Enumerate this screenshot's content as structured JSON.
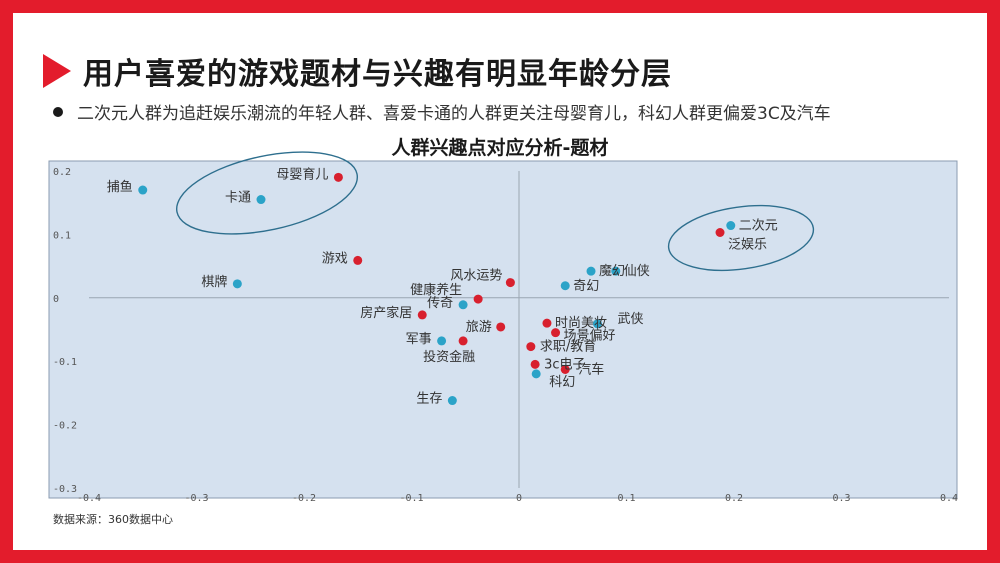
{
  "page": {
    "title": "用户喜爱的游戏题材与兴趣有明显年龄分层",
    "bullet": "二次元人群为追赶娱乐潮流的年轻人群、喜爱卡通的人群更关注母婴育儿，科幻人群更偏爱3C及汽车",
    "source": "数据来源：360数据中心",
    "accent_color": "#e31c2c",
    "bullet_icon": "bullet-dot-icon",
    "title_icon": "triangle-right-icon"
  },
  "chart_data": {
    "type": "scatter",
    "title": "人群兴趣点对应分析-题材",
    "xlim": [
      -0.4,
      0.4
    ],
    "ylim": [
      -0.3,
      0.2
    ],
    "xticks": [
      -0.4,
      -0.3,
      -0.2,
      -0.1,
      0,
      0.1,
      0.2,
      0.3,
      0.4
    ],
    "yticks": [
      -0.3,
      -0.2,
      -0.1,
      0,
      0.1,
      0.2
    ],
    "xtick_labels": [
      "-0.4",
      "-0.3",
      "-0.2",
      "-0.1",
      "0",
      "0.1",
      "0.2",
      "0.3",
      "0.4"
    ],
    "ytick_labels": [
      "-0.3",
      "-0.2",
      "-0.1",
      "0",
      "0.1",
      "0.2"
    ],
    "grid": false,
    "plot_bg": "#d5e1ef",
    "series_colors": {
      "blue": "#2ba3c8",
      "red": "#d8202e"
    },
    "series": [
      {
        "color_key": "blue",
        "points": [
          {
            "label": "捕鱼",
            "x": -0.35,
            "y": 0.17
          },
          {
            "label": "卡通",
            "x": -0.24,
            "y": 0.155
          },
          {
            "label": "棋牌",
            "x": -0.262,
            "y": 0.022
          },
          {
            "label": "传奇",
            "x": -0.052,
            "y": -0.011
          },
          {
            "label": "军事",
            "x": -0.072,
            "y": -0.068
          },
          {
            "label": "生存",
            "x": -0.062,
            "y": -0.162
          },
          {
            "label": "魔幻",
            "x": 0.067,
            "y": 0.042
          },
          {
            "label": "仙侠",
            "x": 0.09,
            "y": 0.042
          },
          {
            "label": "奇幻",
            "x": 0.043,
            "y": 0.019
          },
          {
            "label": "武侠",
            "x": 0.073,
            "y": -0.041
          },
          {
            "label": "科幻",
            "x": 0.016,
            "y": -0.12
          },
          {
            "label": "二次元",
            "x": 0.197,
            "y": 0.114
          }
        ]
      },
      {
        "color_key": "red",
        "points": [
          {
            "label": "母婴育儿",
            "x": -0.168,
            "y": 0.19
          },
          {
            "label": "游戏",
            "x": -0.15,
            "y": 0.059
          },
          {
            "label": "风水运势",
            "x": -0.008,
            "y": 0.024
          },
          {
            "label": "健康养生",
            "x": -0.038,
            "y": -0.002
          },
          {
            "label": "房产家居",
            "x": -0.09,
            "y": -0.027
          },
          {
            "label": "旅游",
            "x": -0.017,
            "y": -0.046
          },
          {
            "label": "投资金融",
            "x": -0.052,
            "y": -0.068
          },
          {
            "label": "时尚美妆",
            "x": 0.026,
            "y": -0.04
          },
          {
            "label": "场景偏好",
            "x": 0.034,
            "y": -0.055
          },
          {
            "label": "求职/教育",
            "x": 0.011,
            "y": -0.077
          },
          {
            "label": "3c电子",
            "x": 0.015,
            "y": -0.105
          },
          {
            "label": "汽车",
            "x": 0.043,
            "y": -0.113
          },
          {
            "label": "泛娱乐",
            "x": 0.187,
            "y": 0.103
          }
        ]
      }
    ]
  }
}
